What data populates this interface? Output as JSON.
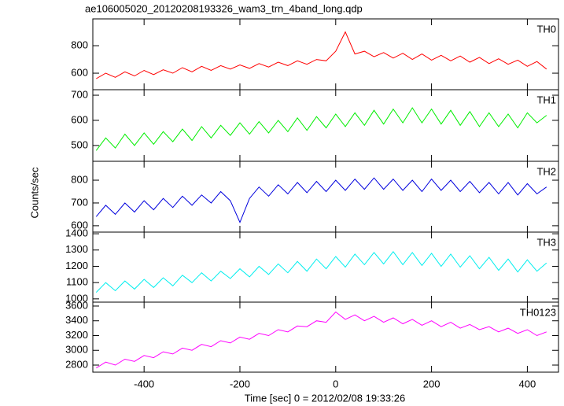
{
  "chart_data": [
    {
      "type": "line",
      "title": "ae106005020_20120208193326_wam3_trn_4band_long.qdp",
      "name": "TH0",
      "color": "#ff0000",
      "x": [
        -500,
        -480,
        -460,
        -440,
        -420,
        -400,
        -380,
        -360,
        -340,
        -320,
        -300,
        -280,
        -260,
        -240,
        -220,
        -200,
        -180,
        -160,
        -140,
        -120,
        -100,
        -80,
        -60,
        -40,
        -20,
        0,
        20,
        40,
        60,
        80,
        100,
        120,
        140,
        160,
        180,
        200,
        220,
        240,
        260,
        280,
        300,
        320,
        340,
        360,
        380,
        400,
        420,
        440
      ],
      "values": [
        560,
        600,
        570,
        610,
        580,
        620,
        590,
        625,
        600,
        640,
        610,
        650,
        620,
        655,
        630,
        660,
        635,
        670,
        645,
        680,
        655,
        690,
        665,
        700,
        690,
        760,
        900,
        740,
        760,
        720,
        750,
        710,
        745,
        700,
        740,
        695,
        730,
        690,
        725,
        680,
        715,
        670,
        705,
        665,
        695,
        650,
        685,
        630
      ],
      "xlim": [
        -507,
        465
      ],
      "ylim": [
        480,
        995
      ],
      "yticks": [
        600,
        800
      ]
    },
    {
      "type": "line",
      "name": "TH1",
      "color": "#00ee00",
      "x": [
        -500,
        -480,
        -460,
        -440,
        -420,
        -400,
        -380,
        -360,
        -340,
        -320,
        -300,
        -280,
        -260,
        -240,
        -220,
        -200,
        -180,
        -160,
        -140,
        -120,
        -100,
        -80,
        -60,
        -40,
        -20,
        0,
        20,
        40,
        60,
        80,
        100,
        120,
        140,
        160,
        180,
        200,
        220,
        240,
        260,
        280,
        300,
        320,
        340,
        360,
        380,
        400,
        420,
        440
      ],
      "values": [
        480,
        530,
        490,
        545,
        500,
        550,
        505,
        555,
        515,
        565,
        520,
        575,
        530,
        580,
        540,
        590,
        545,
        595,
        550,
        600,
        555,
        610,
        560,
        615,
        570,
        625,
        575,
        630,
        580,
        640,
        585,
        645,
        590,
        650,
        590,
        645,
        585,
        640,
        580,
        635,
        575,
        630,
        575,
        625,
        570,
        630,
        590,
        620
      ],
      "xlim": [
        -507,
        465
      ],
      "ylim": [
        437,
        722
      ],
      "yticks": [
        500,
        600,
        700
      ]
    },
    {
      "type": "line",
      "name": "TH2",
      "color": "#0000dd",
      "ylabel": "Counts/sec",
      "x": [
        -500,
        -480,
        -460,
        -440,
        -420,
        -400,
        -380,
        -360,
        -340,
        -320,
        -300,
        -280,
        -260,
        -240,
        -220,
        -200,
        -180,
        -160,
        -140,
        -120,
        -100,
        -80,
        -60,
        -40,
        -20,
        0,
        20,
        40,
        60,
        80,
        100,
        120,
        140,
        160,
        180,
        200,
        220,
        240,
        260,
        280,
        300,
        320,
        340,
        360,
        380,
        400,
        420,
        440
      ],
      "values": [
        640,
        690,
        650,
        700,
        660,
        710,
        670,
        720,
        680,
        730,
        690,
        735,
        700,
        750,
        710,
        615,
        720,
        770,
        730,
        780,
        740,
        790,
        745,
        795,
        750,
        800,
        755,
        805,
        760,
        810,
        760,
        805,
        755,
        800,
        750,
        805,
        755,
        800,
        750,
        795,
        745,
        790,
        740,
        790,
        735,
        785,
        740,
        770
      ],
      "xlim": [
        -507,
        465
      ],
      "ylim": [
        572,
        883
      ],
      "yticks": [
        600,
        700,
        800
      ]
    },
    {
      "type": "line",
      "name": "TH3",
      "color": "#00eeee",
      "x": [
        -500,
        -480,
        -460,
        -440,
        -420,
        -400,
        -380,
        -360,
        -340,
        -320,
        -300,
        -280,
        -260,
        -240,
        -220,
        -200,
        -180,
        -160,
        -140,
        -120,
        -100,
        -80,
        -60,
        -40,
        -20,
        0,
        20,
        40,
        60,
        80,
        100,
        120,
        140,
        160,
        180,
        200,
        220,
        240,
        260,
        280,
        300,
        320,
        340,
        360,
        380,
        400,
        420,
        440
      ],
      "values": [
        1040,
        1100,
        1050,
        1110,
        1060,
        1120,
        1070,
        1130,
        1080,
        1145,
        1100,
        1160,
        1110,
        1170,
        1125,
        1185,
        1135,
        1200,
        1150,
        1215,
        1160,
        1230,
        1170,
        1245,
        1185,
        1260,
        1195,
        1275,
        1210,
        1285,
        1215,
        1290,
        1210,
        1285,
        1205,
        1280,
        1200,
        1275,
        1195,
        1265,
        1185,
        1255,
        1175,
        1245,
        1165,
        1240,
        1170,
        1220
      ],
      "xlim": [
        -507,
        465
      ],
      "ylim": [
        980,
        1410
      ],
      "yticks": [
        1000,
        1100,
        1200,
        1300,
        1400
      ]
    },
    {
      "type": "line",
      "name": "TH0123",
      "color": "#ff00ff",
      "xlabel": "Time [sec] 0 = 2012/02/08 19:33:26",
      "x": [
        -500,
        -480,
        -460,
        -440,
        -420,
        -400,
        -380,
        -360,
        -340,
        -320,
        -300,
        -280,
        -260,
        -240,
        -220,
        -200,
        -180,
        -160,
        -140,
        -120,
        -100,
        -80,
        -60,
        -40,
        -20,
        0,
        20,
        40,
        60,
        80,
        100,
        120,
        140,
        160,
        180,
        200,
        220,
        240,
        260,
        280,
        300,
        320,
        340,
        360,
        380,
        400,
        420,
        440
      ],
      "values": [
        2760,
        2840,
        2800,
        2880,
        2850,
        2930,
        2900,
        2980,
        2950,
        3030,
        3000,
        3080,
        3050,
        3130,
        3100,
        3180,
        3150,
        3230,
        3200,
        3280,
        3250,
        3330,
        3320,
        3400,
        3380,
        3520,
        3420,
        3480,
        3400,
        3460,
        3380,
        3440,
        3360,
        3420,
        3340,
        3400,
        3320,
        3380,
        3300,
        3350,
        3280,
        3320,
        3250,
        3300,
        3230,
        3280,
        3200,
        3250
      ],
      "xlim": [
        -507,
        465
      ],
      "ylim": [
        2704,
        3653
      ],
      "yticks": [
        2800,
        3000,
        3200,
        3400,
        3600
      ],
      "xticks": [
        -400,
        -200,
        0,
        200,
        400
      ]
    }
  ]
}
